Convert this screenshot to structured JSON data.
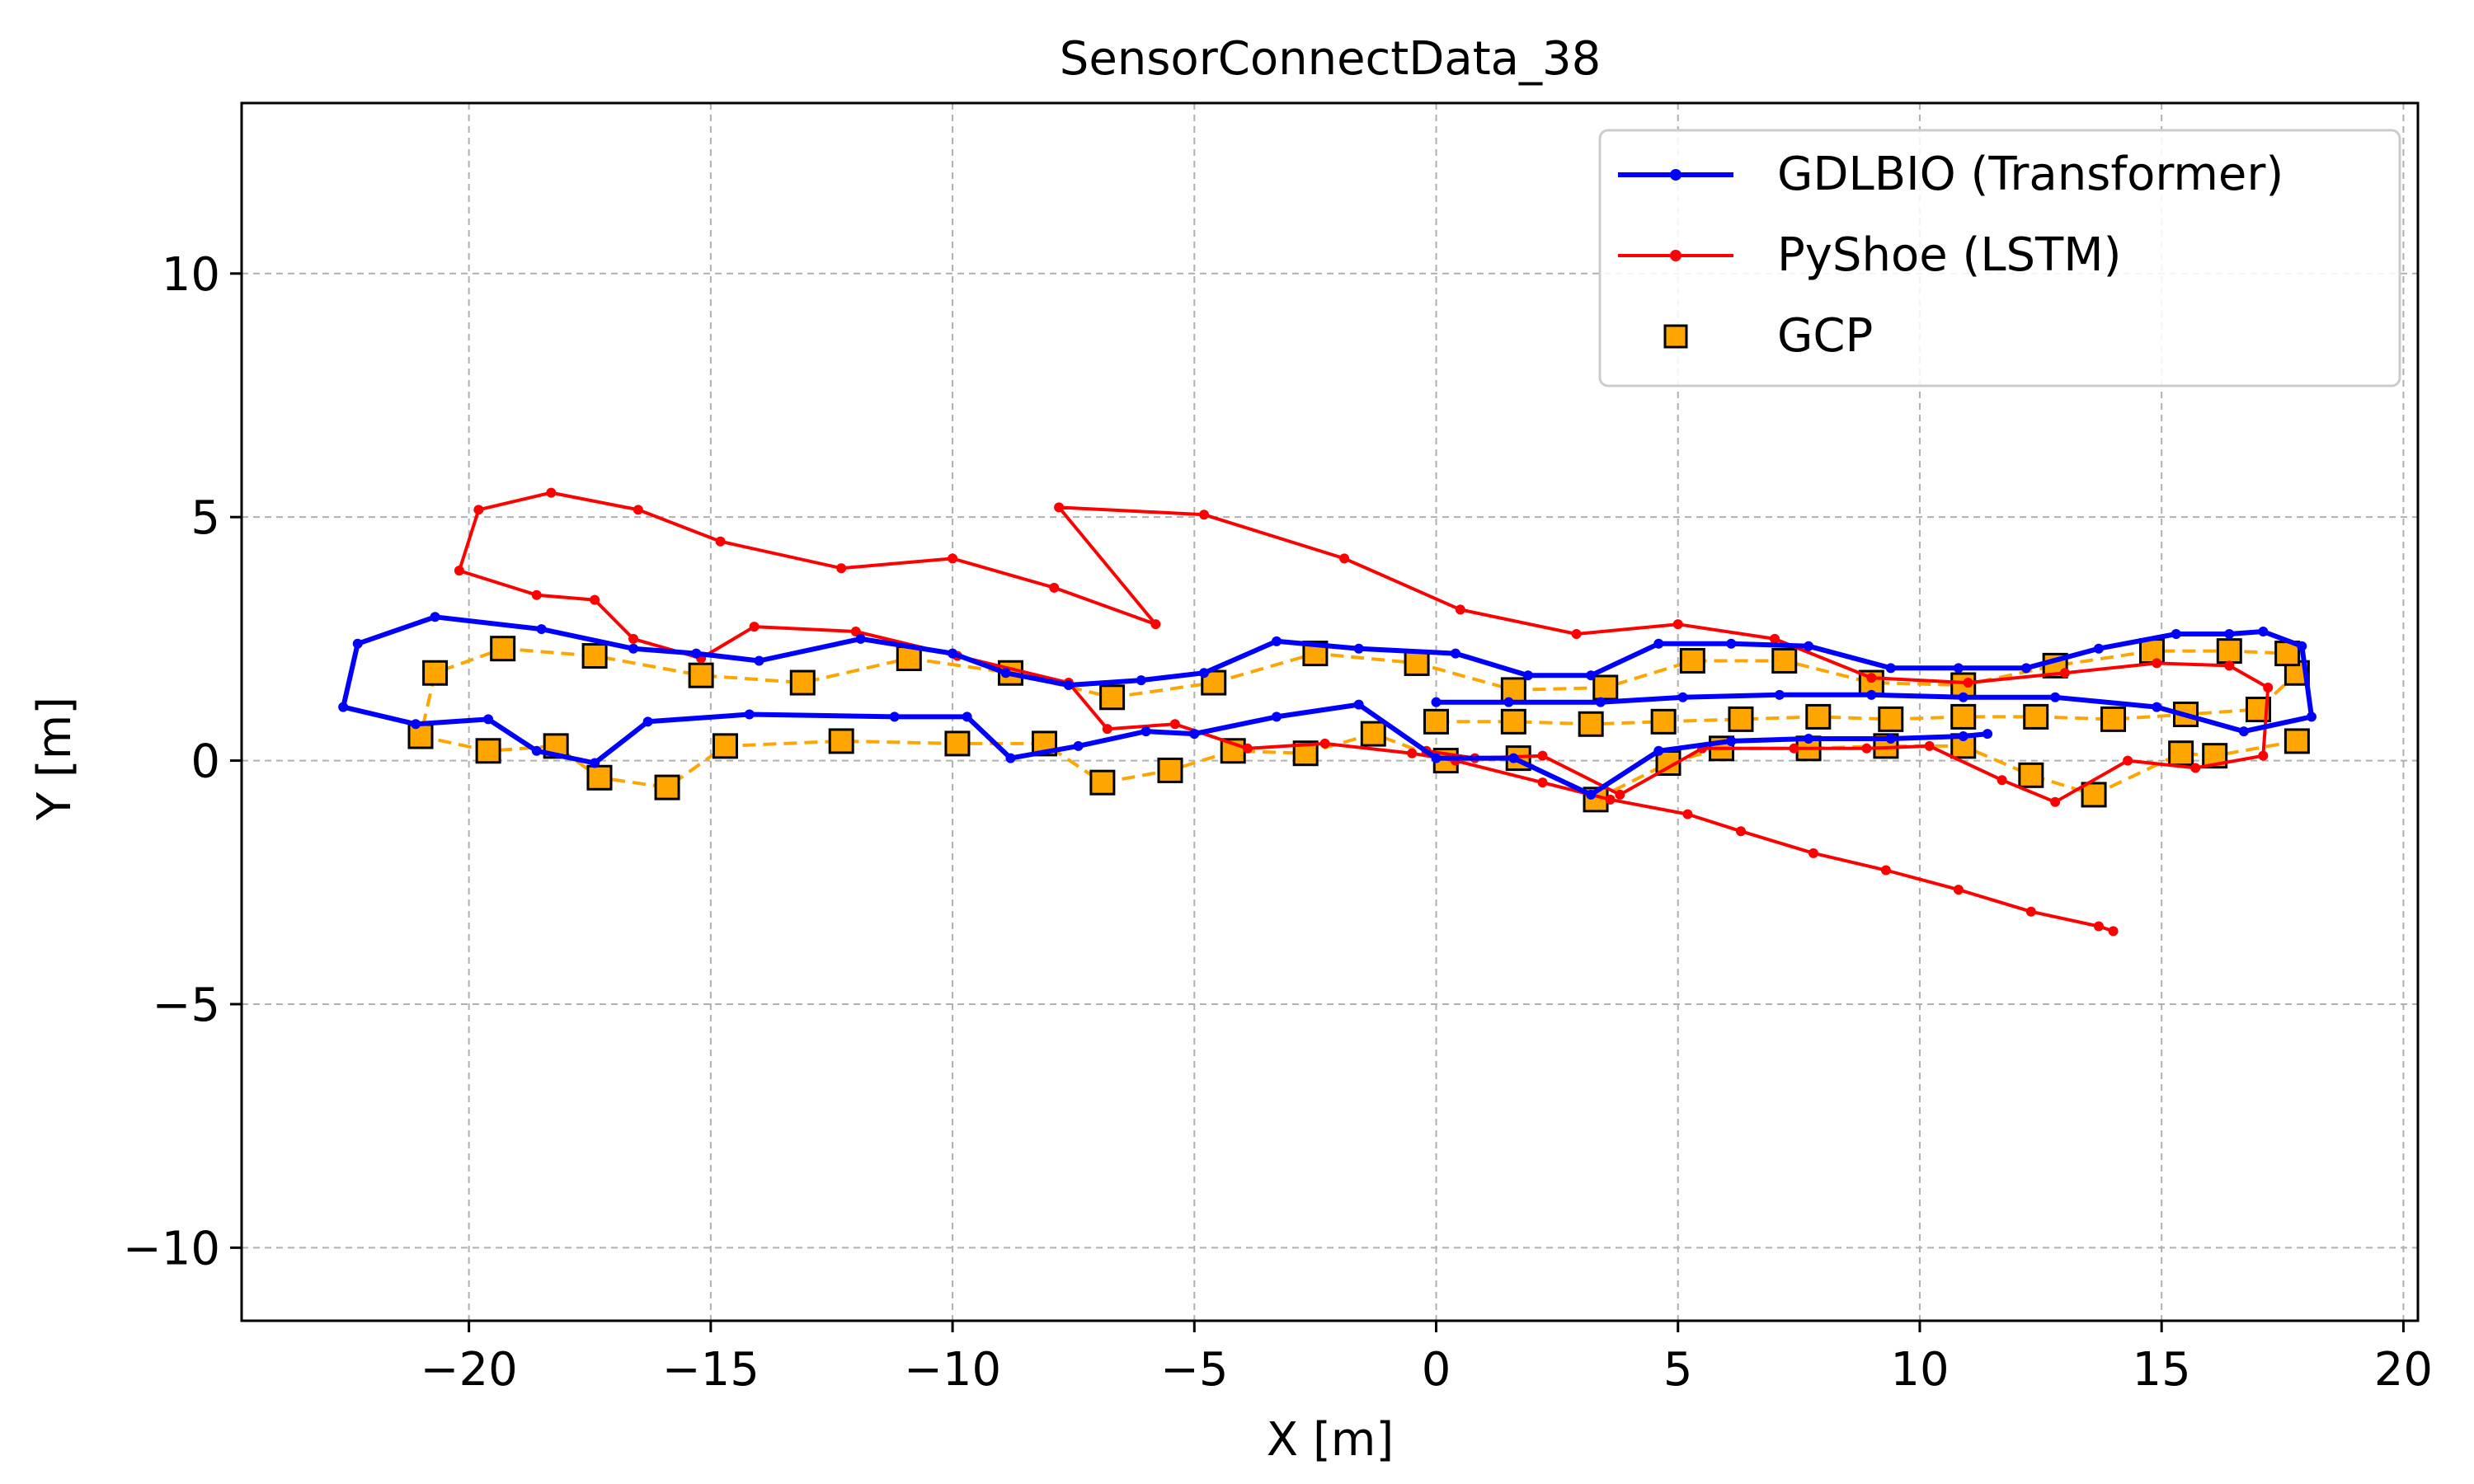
{
  "chart_data": {
    "type": "line",
    "title": "SensorConnectData_38",
    "xlabel": "X [m]",
    "ylabel": "Y [m]",
    "xlim": [
      -24.7,
      20.3
    ],
    "ylim": [
      -11.5,
      13.5
    ],
    "xticks": [
      -20,
      -15,
      -10,
      -5,
      0,
      5,
      10,
      15,
      20
    ],
    "yticks": [
      -10,
      -5,
      0,
      5,
      10
    ],
    "xtick_labels": [
      "−20",
      "−15",
      "−10",
      "−5",
      "0",
      "5",
      "10",
      "15",
      "20"
    ],
    "ytick_labels": [
      "−10",
      "−5",
      "0",
      "5",
      "10"
    ],
    "grid": true,
    "legend_position": "top-right",
    "colors": {
      "gdlbio": "#0000ff",
      "pyshoe": "#ff0000",
      "gcp": "#ffa500"
    },
    "series": [
      {
        "name": "GDLBIO (Transformer)",
        "color": "#0000ff",
        "x": [
          0,
          1.5,
          3.4,
          5.1,
          7.1,
          9.0,
          10.9,
          12.8,
          14.9,
          16.7,
          18.1,
          17.9,
          17.1,
          16.4,
          15.3,
          13.7,
          12.2,
          10.8,
          9.4,
          7.7,
          6.1,
          4.6,
          3.2,
          1.9,
          0.4,
          -1.6,
          -3.3,
          -4.8,
          -6.1,
          -7.6,
          -8.9,
          -10.0,
          -11.9,
          -14.0,
          -15.3,
          -16.6,
          -18.5,
          -20.7,
          -22.3,
          -22.6,
          -21.1,
          -19.6,
          -18.6,
          -17.4,
          -16.3,
          -14.2,
          -11.2,
          -9.7,
          -8.8,
          -7.4,
          -6.0,
          -5.0,
          -3.3,
          -1.6,
          0,
          1.6,
          3.2,
          4.6,
          6.1,
          7.7,
          9.4,
          10.9,
          11.4
        ],
        "y": [
          1.2,
          1.2,
          1.2,
          1.3,
          1.35,
          1.35,
          1.3,
          1.3,
          1.1,
          0.6,
          0.9,
          2.35,
          2.65,
          2.6,
          2.6,
          2.3,
          1.9,
          1.9,
          1.9,
          2.35,
          2.4,
          2.4,
          1.75,
          1.75,
          2.2,
          2.3,
          2.45,
          1.8,
          1.65,
          1.55,
          1.8,
          2.2,
          2.5,
          2.05,
          2.2,
          2.3,
          2.7,
          2.95,
          2.4,
          1.1,
          0.75,
          0.85,
          0.2,
          -0.05,
          0.8,
          0.95,
          0.9,
          0.9,
          0.05,
          0.3,
          0.6,
          0.55,
          0.9,
          1.15,
          0.05,
          0.05,
          -0.7,
          0.2,
          0.4,
          0.45,
          0.45,
          0.5,
          0.55
        ],
        "marker": "dot",
        "dashed": false
      },
      {
        "name": "PyShoe (LSTM)",
        "color": "#ff0000",
        "x": [
          14.0,
          13.7,
          12.3,
          10.8,
          9.3,
          7.8,
          6.3,
          5.2,
          3.6,
          2.2,
          0.4,
          -0.5,
          -2.3,
          -3.9,
          -5.4,
          -6.8,
          -7.6,
          -9.9,
          -12.0,
          -14.1,
          -15.2,
          -16.6,
          -17.4,
          -18.6,
          -20.2,
          -19.8,
          -18.3,
          -16.5,
          -14.8,
          -12.3,
          -10.0,
          -7.9,
          -5.8,
          -7.8,
          -4.8,
          -1.9,
          0.5,
          2.9,
          5.0,
          7.0,
          9.0,
          11.0,
          13.0,
          14.9,
          16.4,
          17.2,
          17.1,
          15.7,
          14.3,
          12.8,
          11.7,
          10.2,
          8.9,
          7.4,
          5.5,
          3.8,
          2.2,
          0.8,
          -0.2
        ],
        "y": [
          -3.5,
          -3.4,
          -3.1,
          -2.65,
          -2.25,
          -1.9,
          -1.45,
          -1.1,
          -0.8,
          -0.45,
          0.0,
          0.15,
          0.35,
          0.25,
          0.75,
          0.65,
          1.6,
          2.15,
          2.65,
          2.75,
          2.1,
          2.5,
          3.3,
          3.4,
          3.9,
          5.15,
          5.5,
          5.15,
          4.5,
          3.95,
          4.15,
          3.55,
          2.8,
          5.2,
          5.05,
          4.15,
          3.1,
          2.6,
          2.8,
          2.5,
          1.7,
          1.6,
          1.8,
          2.0,
          1.95,
          1.5,
          0.1,
          -0.15,
          0.0,
          -0.85,
          -0.4,
          0.3,
          0.25,
          0.25,
          0.25,
          -0.7,
          0.1,
          0.05,
          0.2
        ],
        "marker": "dot",
        "dashed": false
      },
      {
        "name": "GCP",
        "color": "#ffa500",
        "x": [
          0,
          1.6,
          3.2,
          4.7,
          6.3,
          7.9,
          9.4,
          10.9,
          12.4,
          14.0,
          15.5,
          17.0,
          17.8,
          17.6,
          16.4,
          14.8,
          12.8,
          10.9,
          9.0,
          7.2,
          5.3,
          3.5,
          1.6,
          -0.4,
          -2.5,
          -4.6,
          -6.7,
          -8.8,
          -10.9,
          -13.1,
          -15.2,
          -17.4,
          -19.3,
          -20.7,
          -21.0,
          -19.6,
          -18.2,
          -17.3,
          -15.9,
          -14.7,
          -12.3,
          -9.9,
          -8.1,
          -6.9,
          -5.5,
          -4.2,
          -2.7,
          -1.3,
          0.2,
          1.7,
          3.3,
          4.8,
          5.9,
          7.7,
          9.3,
          10.9,
          12.3,
          13.6,
          15.4,
          16.1,
          17.8
        ],
        "y": [
          0.8,
          0.8,
          0.75,
          0.8,
          0.85,
          0.9,
          0.85,
          0.9,
          0.9,
          0.85,
          0.95,
          1.05,
          1.8,
          2.2,
          2.25,
          2.25,
          1.95,
          1.55,
          1.6,
          2.05,
          2.05,
          1.5,
          1.45,
          2.0,
          2.2,
          1.6,
          1.3,
          1.8,
          2.1,
          1.6,
          1.75,
          2.15,
          2.3,
          1.8,
          0.5,
          0.2,
          0.3,
          -0.35,
          -0.55,
          0.3,
          0.4,
          0.35,
          0.35,
          -0.45,
          -0.2,
          0.2,
          0.15,
          0.55,
          0.0,
          0.05,
          -0.8,
          -0.05,
          0.25,
          0.25,
          0.3,
          0.3,
          -0.3,
          -0.7,
          0.15,
          0.1,
          0.4
        ],
        "marker": "square",
        "dashed": true,
        "legend_line": false
      }
    ]
  }
}
